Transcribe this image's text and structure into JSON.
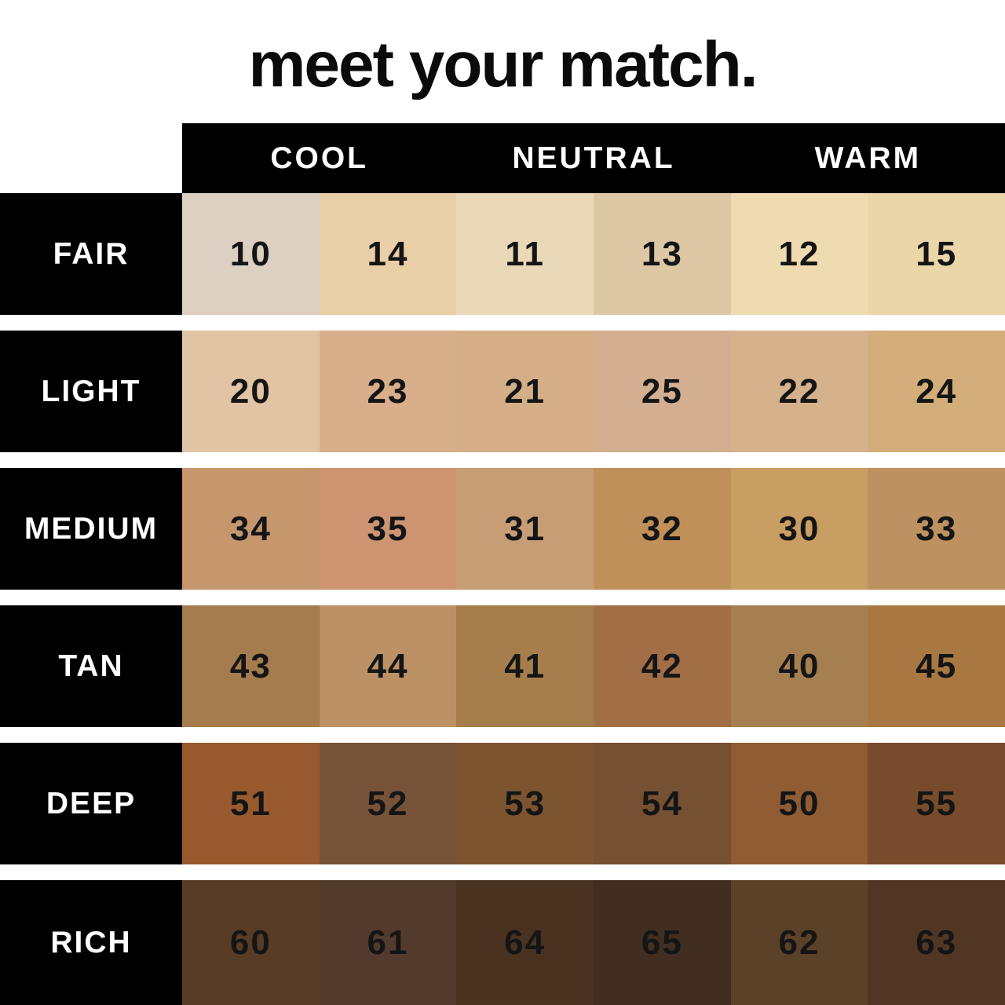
{
  "title": "meet your match.",
  "columns": [
    {
      "label": "COOL"
    },
    {
      "label": "NEUTRAL"
    },
    {
      "label": "WARM"
    }
  ],
  "rows": [
    {
      "label": "FAIR",
      "swatches": [
        {
          "shade": "10",
          "color": "#ddd0c2"
        },
        {
          "shade": "14",
          "color": "#e9cfa7"
        },
        {
          "shade": "11",
          "color": "#ead9b8"
        },
        {
          "shade": "13",
          "color": "#ddc8a6"
        },
        {
          "shade": "12",
          "color": "#eedbb1"
        },
        {
          "shade": "15",
          "color": "#ebd6a9"
        }
      ]
    },
    {
      "label": "LIGHT",
      "swatches": [
        {
          "shade": "20",
          "color": "#e0c4a4"
        },
        {
          "shade": "23",
          "color": "#d8af8a"
        },
        {
          "shade": "21",
          "color": "#d4ae86"
        },
        {
          "shade": "25",
          "color": "#d3ae90"
        },
        {
          "shade": "22",
          "color": "#d5b18c"
        },
        {
          "shade": "24",
          "color": "#d3ae7a"
        }
      ]
    },
    {
      "label": "MEDIUM",
      "swatches": [
        {
          "shade": "34",
          "color": "#c6966d"
        },
        {
          "shade": "35",
          "color": "#cc9471"
        },
        {
          "shade": "31",
          "color": "#c79d75"
        },
        {
          "shade": "32",
          "color": "#bf9059"
        },
        {
          "shade": "30",
          "color": "#c99e63"
        },
        {
          "shade": "33",
          "color": "#bd9260"
        }
      ]
    },
    {
      "label": "TAN",
      "swatches": [
        {
          "shade": "43",
          "color": "#a57c4e"
        },
        {
          "shade": "44",
          "color": "#bd9166"
        },
        {
          "shade": "41",
          "color": "#a67e4c"
        },
        {
          "shade": "42",
          "color": "#a16e46"
        },
        {
          "shade": "40",
          "color": "#a67f50"
        },
        {
          "shade": "45",
          "color": "#a97741"
        }
      ]
    },
    {
      "label": "DEEP",
      "swatches": [
        {
          "shade": "51",
          "color": "#99592f"
        },
        {
          "shade": "52",
          "color": "#765238"
        },
        {
          "shade": "53",
          "color": "#7d5430"
        },
        {
          "shade": "54",
          "color": "#755033"
        },
        {
          "shade": "50",
          "color": "#8f5c33"
        },
        {
          "shade": "55",
          "color": "#774b2c"
        }
      ]
    },
    {
      "label": "RICH",
      "swatches": [
        {
          "shade": "60",
          "color": "#583c26"
        },
        {
          "shade": "61",
          "color": "#523b2c"
        },
        {
          "shade": "64",
          "color": "#493220"
        },
        {
          "shade": "65",
          "color": "#412e20"
        },
        {
          "shade": "62",
          "color": "#5c4129"
        },
        {
          "shade": "63",
          "color": "#513723"
        }
      ]
    }
  ],
  "colors": {
    "background": "#ffffff",
    "band_bg": "#000000",
    "band_text": "#ffffff",
    "number_text": "#151515"
  },
  "chart_data": {
    "type": "table",
    "title": "meet your match.",
    "column_groups": [
      "COOL",
      "NEUTRAL",
      "WARM"
    ],
    "row_labels": [
      "FAIR",
      "LIGHT",
      "MEDIUM",
      "TAN",
      "DEEP",
      "RICH"
    ],
    "shade_numbers": [
      [
        10,
        14,
        11,
        13,
        12,
        15
      ],
      [
        20,
        23,
        21,
        25,
        22,
        24
      ],
      [
        34,
        35,
        31,
        32,
        30,
        33
      ],
      [
        43,
        44,
        41,
        42,
        40,
        45
      ],
      [
        51,
        52,
        53,
        54,
        50,
        55
      ],
      [
        60,
        61,
        64,
        65,
        62,
        63
      ]
    ],
    "layout": "rows are depth levels, each undertone group (cool/neutral/warm) spans two swatch columns"
  }
}
